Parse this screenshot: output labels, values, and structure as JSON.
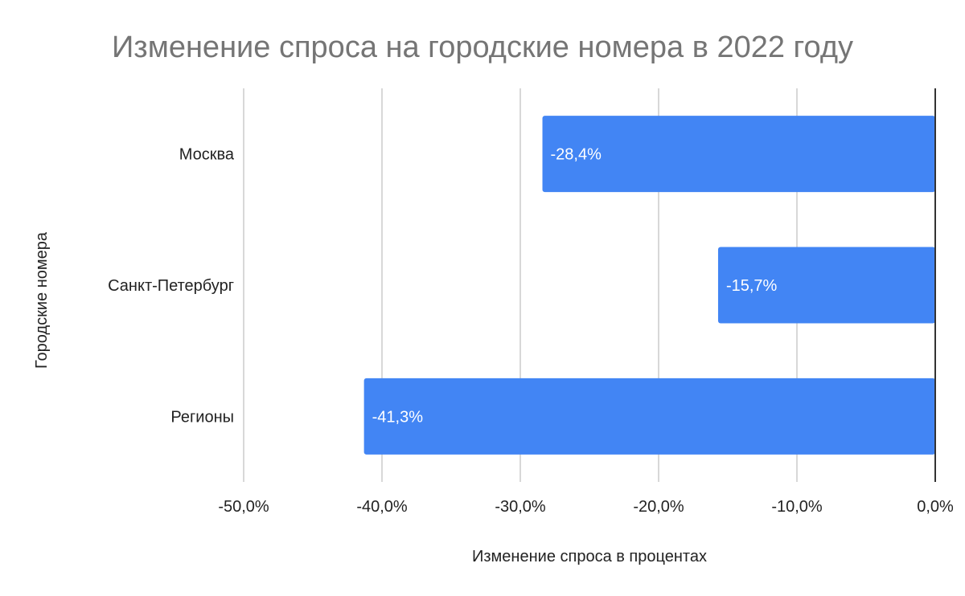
{
  "chart_data": {
    "type": "bar",
    "orientation": "horizontal",
    "title": "Изменение спроса на городские номера в 2022 году",
    "xlabel": "Изменение спроса в процентах",
    "ylabel": "Городские номера",
    "categories": [
      "Москва",
      "Санкт-Петербург",
      "Регионы"
    ],
    "values": [
      -28.4,
      -15.7,
      -41.3
    ],
    "data_labels": [
      "-28,4%",
      "-15,7%",
      "-41,3%"
    ],
    "xlim": [
      -50,
      0
    ],
    "x_ticks": [
      -50,
      -40,
      -30,
      -20,
      -10,
      0
    ],
    "x_tick_labels": [
      "-50,0%",
      "-40,0%",
      "-30,0%",
      "-20,0%",
      "-10,0%",
      "0,0%"
    ],
    "grid": true,
    "legend": "none",
    "colors": {
      "bar": "#4285f4",
      "grid": "#cccccc",
      "zero_line": "#333333",
      "title": "#757575",
      "text": "#222222",
      "label": "#ffffff"
    }
  }
}
